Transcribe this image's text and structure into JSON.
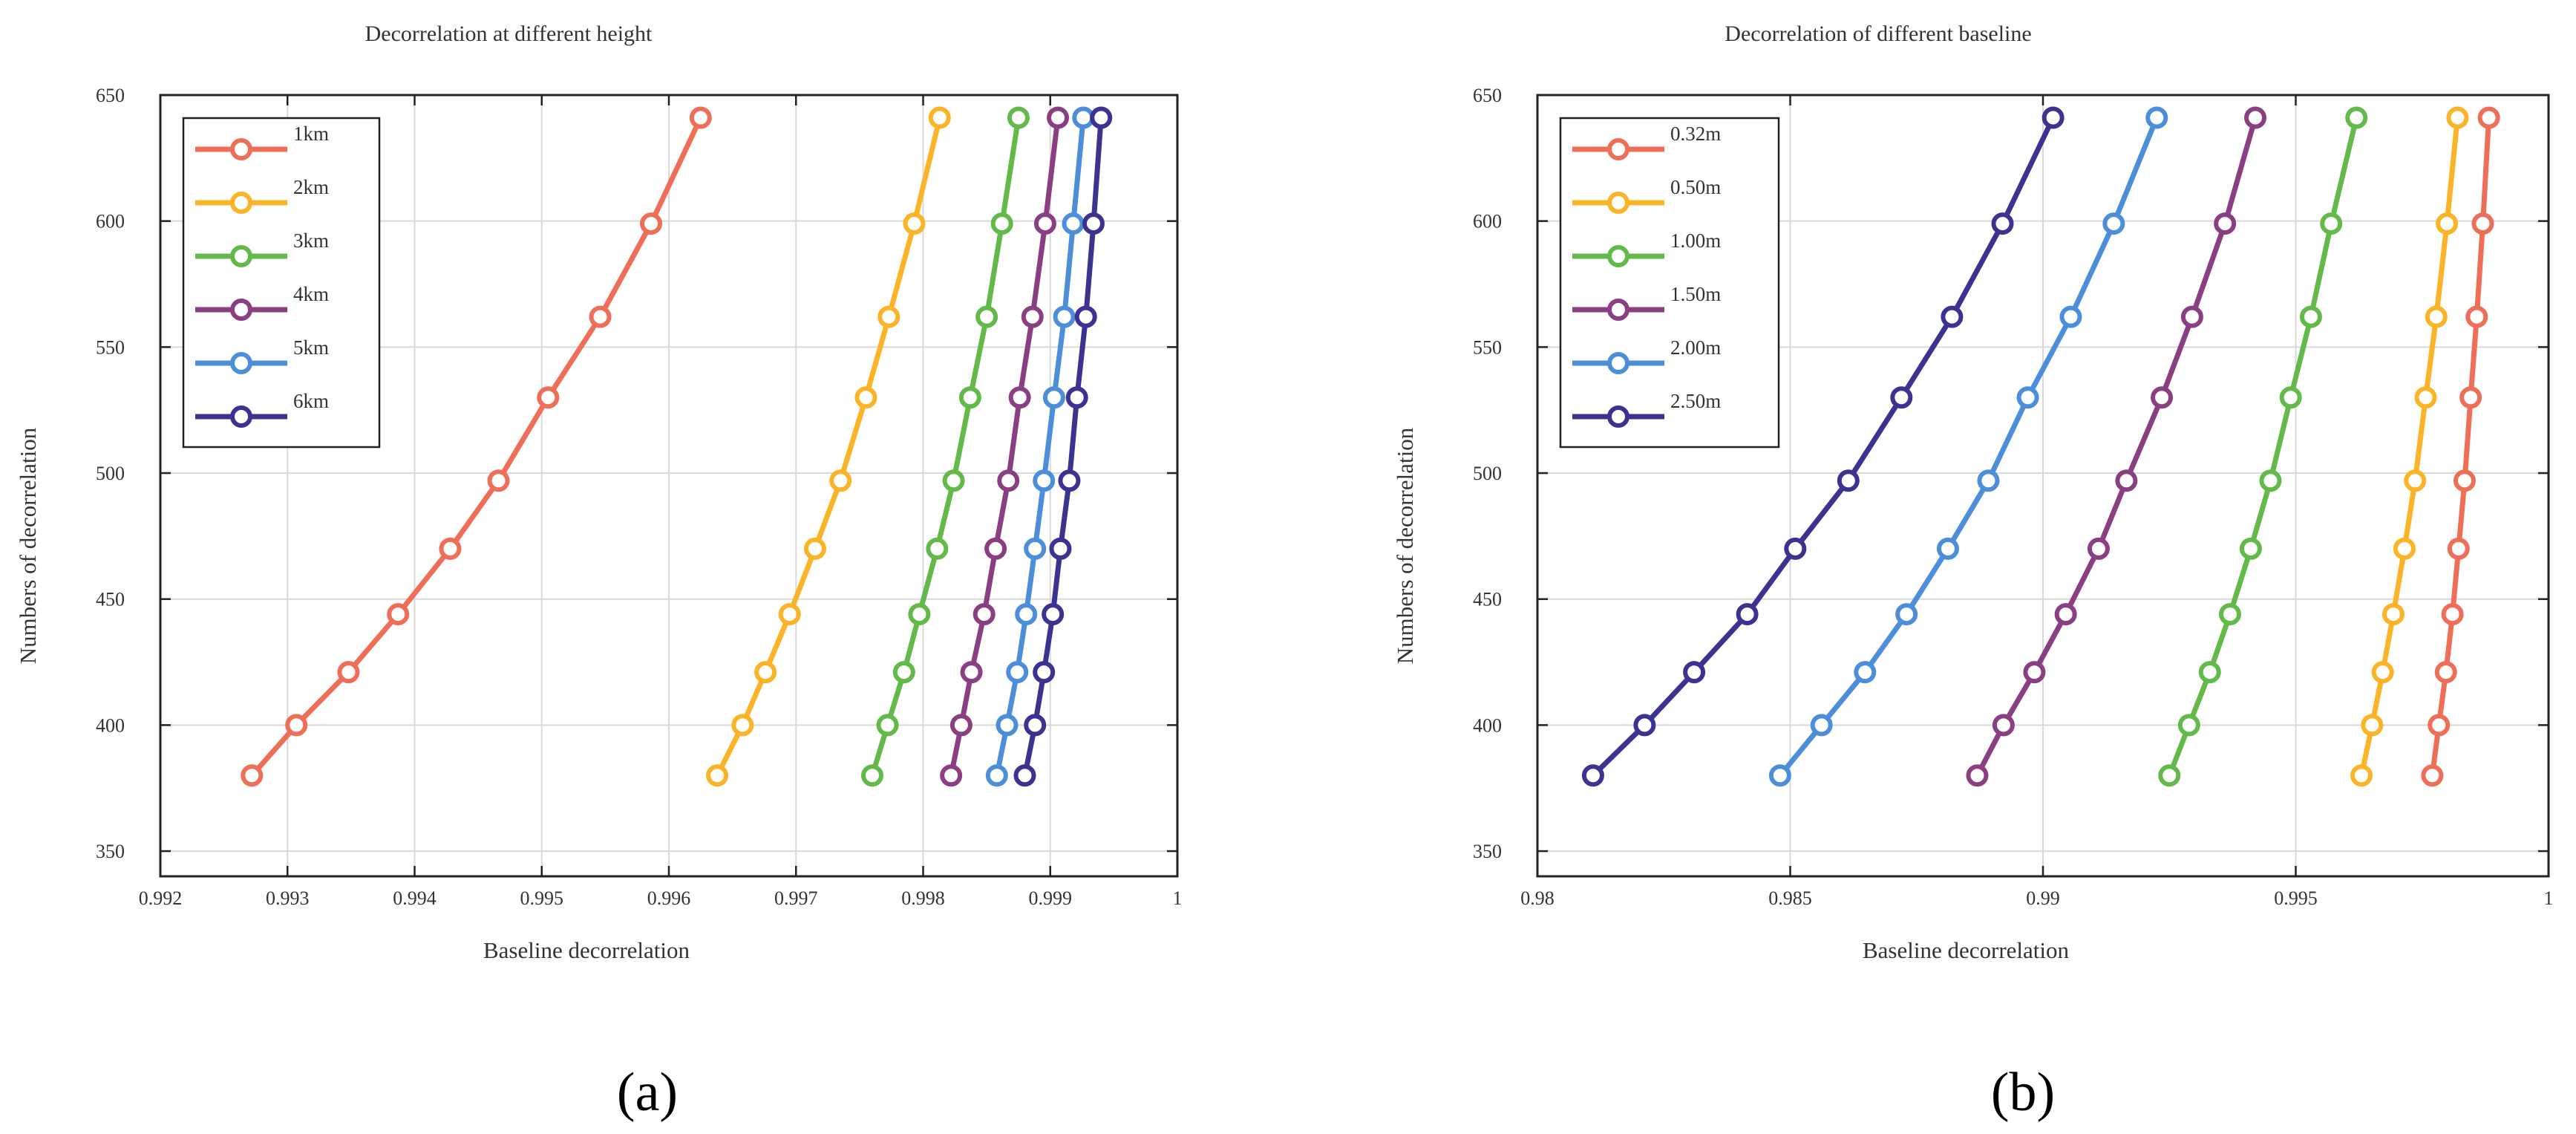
{
  "colors": [
    "#EE6E58",
    "#FBB327",
    "#63B949",
    "#8A3F82",
    "#4C8EDA",
    "#3C3391"
  ],
  "panels": [
    {
      "panel_label": "(a)",
      "title": "Decorrelation at different height",
      "xlabel": "Baseline decorrelation",
      "ylabel": "Numbers of decorrelation"
    },
    {
      "panel_label": "(b)",
      "title": "Decorrelation of different baseline",
      "xlabel": "Baseline decorrelation",
      "ylabel": "Numbers of decorrelation"
    }
  ],
  "chart_data": [
    {
      "type": "line",
      "title": "Decorrelation at different height",
      "xlabel": "Baseline decorrelation",
      "ylabel": "Numbers of decorrelation",
      "xlim": [
        0.992,
        1
      ],
      "ylim": [
        340,
        650
      ],
      "xticks": [
        0.992,
        0.993,
        0.994,
        0.995,
        0.996,
        0.997,
        0.998,
        0.999,
        1
      ],
      "xtick_labels": [
        "0.992",
        "0.993",
        "0.994",
        "0.995",
        "0.996",
        "0.997",
        "0.998",
        "0.999",
        "1"
      ],
      "yticks": [
        350,
        400,
        450,
        500,
        550,
        600,
        650
      ],
      "ytick_labels": [
        "350",
        "400",
        "450",
        "500",
        "550",
        "600",
        "650"
      ],
      "grid": true,
      "legend_position": "top-left",
      "y": [
        380,
        400,
        421,
        444,
        470,
        497,
        530,
        562,
        599,
        641
      ],
      "series": [
        {
          "name": "1km",
          "x": [
            0.99272,
            0.99307,
            0.99348,
            0.99387,
            0.99428,
            0.99466,
            0.99505,
            0.99546,
            0.99586,
            0.99625
          ]
        },
        {
          "name": "2km",
          "x": [
            0.99638,
            0.99658,
            0.99676,
            0.99695,
            0.99715,
            0.99735,
            0.99755,
            0.99773,
            0.99793,
            0.99813
          ]
        },
        {
          "name": "3km",
          "x": [
            0.9976,
            0.99772,
            0.99785,
            0.99797,
            0.99811,
            0.99824,
            0.99837,
            0.9985,
            0.99862,
            0.99875
          ]
        },
        {
          "name": "4km",
          "x": [
            0.99822,
            0.9983,
            0.99838,
            0.99848,
            0.99857,
            0.99867,
            0.99876,
            0.99886,
            0.99896,
            0.99906
          ]
        },
        {
          "name": "5km",
          "x": [
            0.99858,
            0.99866,
            0.99874,
            0.99881,
            0.99888,
            0.99895,
            0.99903,
            0.99911,
            0.99918,
            0.99926
          ]
        },
        {
          "name": "6km",
          "x": [
            0.9988,
            0.99888,
            0.99895,
            0.99902,
            0.99908,
            0.99915,
            0.99921,
            0.99928,
            0.99934,
            0.9994
          ]
        }
      ]
    },
    {
      "type": "line",
      "title": "Decorrelation of different baseline",
      "xlabel": "Baseline decorrelation",
      "ylabel": "Numbers of decorrelation",
      "xlim": [
        0.98,
        1
      ],
      "ylim": [
        340,
        650
      ],
      "xticks": [
        0.98,
        0.985,
        0.99,
        0.995,
        1
      ],
      "xtick_labels": [
        "0.98",
        "0.985",
        "0.99",
        "0.995",
        "1"
      ],
      "yticks": [
        350,
        400,
        450,
        500,
        550,
        600,
        650
      ],
      "ytick_labels": [
        "350",
        "400",
        "450",
        "500",
        "550",
        "600",
        "650"
      ],
      "grid": true,
      "legend_position": "top-left",
      "y": [
        380,
        400,
        421,
        444,
        470,
        497,
        530,
        562,
        599,
        641
      ],
      "series": [
        {
          "name": "0.32m",
          "x": [
            0.9977,
            0.99783,
            0.99797,
            0.9981,
            0.99822,
            0.99834,
            0.99846,
            0.99858,
            0.9987,
            0.99882
          ]
        },
        {
          "name": "0.50m",
          "x": [
            0.9963,
            0.99651,
            0.99672,
            0.99693,
            0.99715,
            0.99736,
            0.99757,
            0.99778,
            0.99799,
            0.9982
          ]
        },
        {
          "name": "1.00m",
          "x": [
            0.9925,
            0.99289,
            0.9933,
            0.9937,
            0.99411,
            0.9945,
            0.9949,
            0.9953,
            0.9957,
            0.9962
          ]
        },
        {
          "name": "1.50m",
          "x": [
            0.9887,
            0.98922,
            0.98983,
            0.99045,
            0.9911,
            0.99165,
            0.99235,
            0.99295,
            0.9936,
            0.9942
          ]
        },
        {
          "name": "2.00m",
          "x": [
            0.9848,
            0.98562,
            0.98648,
            0.9873,
            0.98812,
            0.98892,
            0.9897,
            0.99055,
            0.9914,
            0.99225
          ]
        },
        {
          "name": "2.50m",
          "x": [
            0.9811,
            0.98212,
            0.9831,
            0.98415,
            0.9851,
            0.98615,
            0.9872,
            0.9882,
            0.9892,
            0.9902
          ]
        }
      ]
    }
  ]
}
